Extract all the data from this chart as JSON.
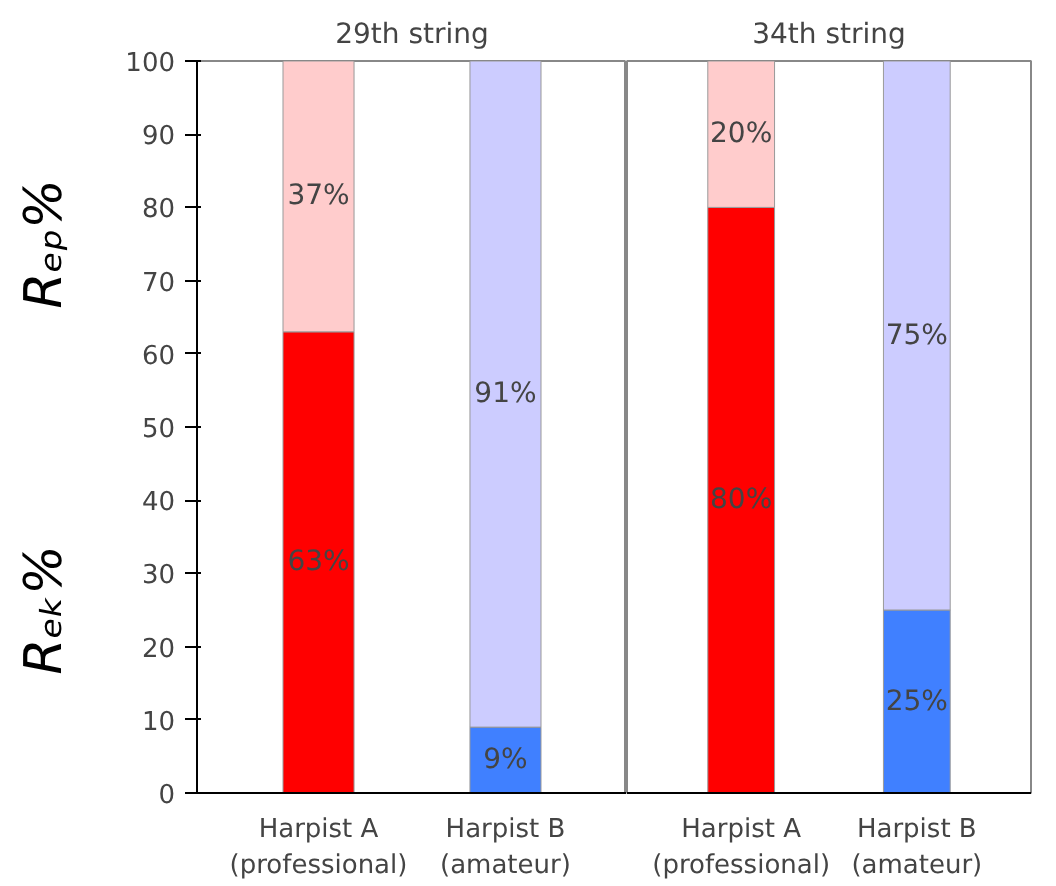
{
  "chart_data": [
    {
      "type": "bar",
      "title": "29th string",
      "stacked": true,
      "categories": [
        "Harpist A\n(professional)",
        "Harpist B\n(amateur)"
      ],
      "ylim": [
        0,
        100
      ],
      "yticks": [
        0,
        10,
        20,
        30,
        40,
        50,
        60,
        70,
        80,
        90,
        100
      ],
      "ylabel": "Rₑₖ%",
      "annotations": [
        "Rₑₚ%"
      ],
      "series": [
        {
          "colors": [
            "#ff0000",
            "#4080ff"
          ],
          "values": [
            63,
            9
          ],
          "value_labels": [
            "63%",
            "9%"
          ]
        },
        {
          "colors": [
            "#ffcccc",
            "#ccccff"
          ],
          "values": [
            37,
            91
          ],
          "value_labels": [
            "37%",
            "91%"
          ]
        }
      ]
    },
    {
      "type": "bar",
      "title": "34th string",
      "stacked": true,
      "categories": [
        "Harpist A\n(professional)",
        "Harpist B\n(amateur)"
      ],
      "ylim": [
        0,
        100
      ],
      "tick_labels": "x",
      "series": [
        {
          "colors": [
            "#ff0000",
            "#4080ff"
          ],
          "values": [
            80,
            25
          ],
          "value_labels": [
            "80%",
            "25%"
          ]
        },
        {
          "colors": [
            "#ffcccc",
            "#ccccff"
          ],
          "values": [
            20,
            75
          ],
          "value_labels": [
            "20%",
            "75%"
          ]
        }
      ]
    }
  ]
}
